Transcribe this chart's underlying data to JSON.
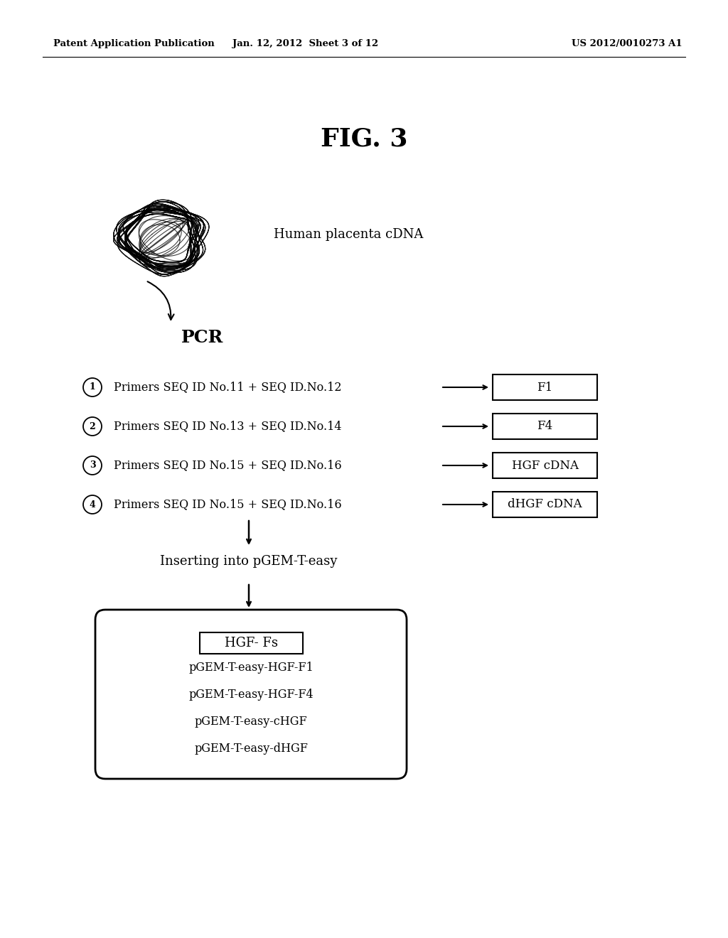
{
  "bg_color": "#ffffff",
  "header_left": "Patent Application Publication",
  "header_mid": "Jan. 12, 2012  Sheet 3 of 12",
  "header_right": "US 2012/0010273 A1",
  "fig_title": "FIG. 3",
  "cdna_label": "Human placenta cDNA",
  "pcr_label": "PCR",
  "primer_rows": [
    {
      "circled": "1",
      "text": "Primers SEQ ID No.11 + SEQ ID.No.12",
      "box_label": "F1"
    },
    {
      "circled": "2",
      "text": "Primers SEQ ID No.13 + SEQ ID.No.14",
      "box_label": "F4"
    },
    {
      "circled": "3",
      "text": "Primers SEQ ID No.15 + SEQ ID.No.16",
      "box_label": "HGF cDNA"
    },
    {
      "circled": "4",
      "text": "Primers SEQ ID No.15 + SEQ ID.No.16",
      "box_label": "dHGF cDNA"
    }
  ],
  "insert_label": "Inserting into pGEM-T-easy",
  "bottom_box_title": "HGF- Fs",
  "bottom_box_items": [
    "pGEM-T-easy-HGF-F1",
    "pGEM-T-easy-HGF-F4",
    "pGEM-T-easy-cHGF",
    "pGEM-T-easy-dHGF"
  ]
}
